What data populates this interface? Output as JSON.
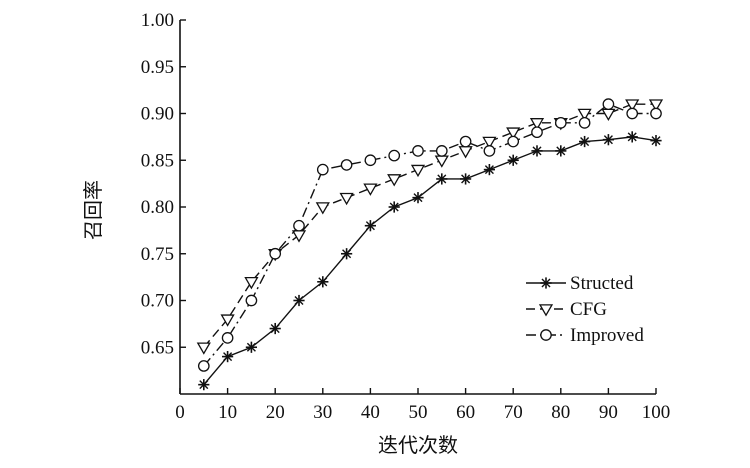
{
  "chart_data": {
    "type": "line",
    "xlabel": "迭代次数",
    "ylabel": "召回率",
    "xlim": [
      0,
      100
    ],
    "ylim": [
      0.6,
      1.0
    ],
    "xticks": [
      0,
      10,
      20,
      30,
      40,
      50,
      60,
      70,
      80,
      90,
      100
    ],
    "yticks": [
      0.65,
      0.7,
      0.75,
      0.8,
      0.85,
      0.9,
      0.95,
      1.0
    ],
    "xtick_labels": [
      "0",
      "10",
      "20",
      "30",
      "40",
      "50",
      "60",
      "70",
      "80",
      "90",
      "100"
    ],
    "ytick_labels": [
      "0.65",
      "0.70",
      "0.75",
      "0.80",
      "0.85",
      "0.90",
      "0.95",
      "1.00"
    ],
    "grid": false,
    "legend_position": "bottom-right",
    "x": [
      5,
      10,
      15,
      20,
      25,
      30,
      35,
      40,
      45,
      50,
      55,
      60,
      65,
      70,
      75,
      80,
      85,
      90,
      95,
      100
    ],
    "series": [
      {
        "name": "Structed",
        "marker": "star",
        "dash": "solid",
        "values": [
          0.61,
          0.64,
          0.65,
          0.67,
          0.7,
          0.72,
          0.75,
          0.78,
          0.8,
          0.81,
          0.83,
          0.83,
          0.84,
          0.85,
          0.86,
          0.86,
          0.87,
          0.872,
          0.875,
          0.871
        ]
      },
      {
        "name": "CFG",
        "marker": "triangle-down",
        "dash": "dashed",
        "values": [
          0.65,
          0.68,
          0.72,
          0.75,
          0.77,
          0.8,
          0.81,
          0.82,
          0.83,
          0.84,
          0.85,
          0.86,
          0.87,
          0.88,
          0.89,
          0.89,
          0.9,
          0.9,
          0.91,
          0.91
        ]
      },
      {
        "name": "Improved",
        "marker": "circle",
        "dash": "dashdot",
        "values": [
          0.63,
          0.66,
          0.7,
          0.75,
          0.78,
          0.84,
          0.845,
          0.85,
          0.855,
          0.86,
          0.86,
          0.87,
          0.86,
          0.87,
          0.88,
          0.89,
          0.89,
          0.91,
          0.9,
          0.9
        ]
      }
    ]
  }
}
